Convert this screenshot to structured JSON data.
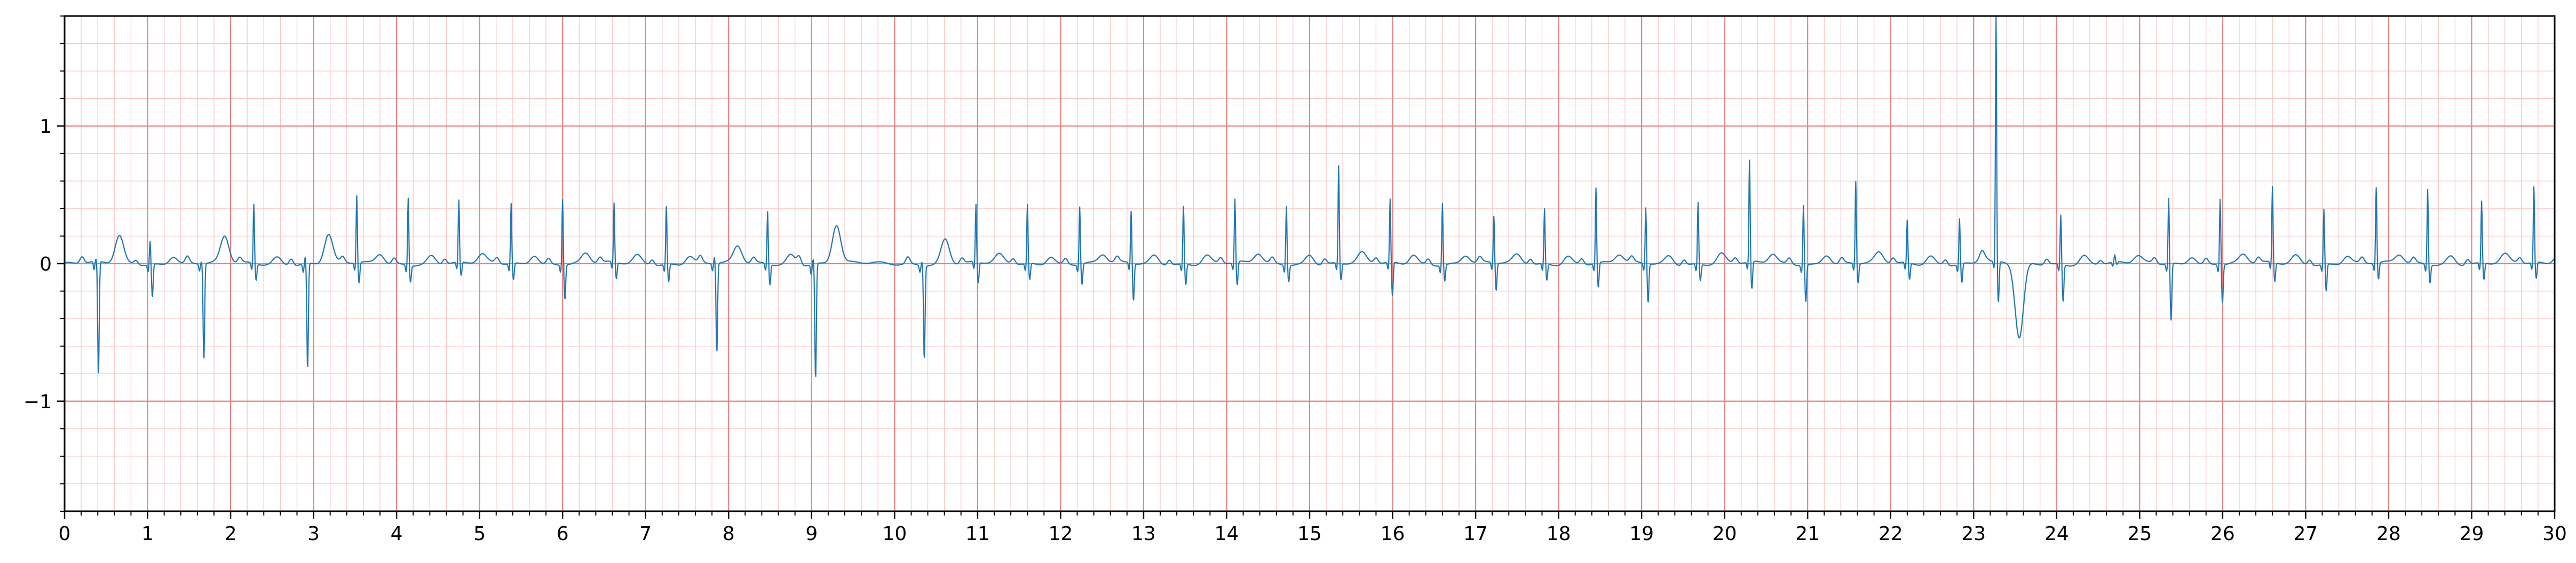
{
  "chart_data": {
    "type": "line",
    "title": "",
    "xlabel": "",
    "ylabel": "",
    "xlim": [
      0,
      30
    ],
    "ylim": [
      -1.8,
      1.8
    ],
    "x_ticks": [
      0,
      1,
      2,
      3,
      4,
      5,
      6,
      7,
      8,
      9,
      10,
      11,
      12,
      13,
      14,
      15,
      16,
      17,
      18,
      19,
      20,
      21,
      22,
      23,
      24,
      25,
      26,
      27,
      28,
      29,
      30
    ],
    "x_tick_labels": [
      "0",
      "1",
      "2",
      "3",
      "4",
      "5",
      "6",
      "7",
      "8",
      "9",
      "10",
      "11",
      "12",
      "13",
      "14",
      "15",
      "16",
      "17",
      "18",
      "19",
      "20",
      "21",
      "22",
      "23",
      "24",
      "25",
      "26",
      "27",
      "28",
      "29",
      "30"
    ],
    "y_ticks": [
      -1,
      0,
      1
    ],
    "y_tick_labels": [
      "−1",
      "0",
      "1"
    ],
    "grid": "on",
    "grid_major_step": {
      "x": 1,
      "y": 1
    },
    "grid_minor_step": {
      "x": 0.2,
      "y": 0.2
    },
    "colors": {
      "line": "#1f77b4",
      "grid_major": "#f08080",
      "grid_minor": "#fbc4c4",
      "axes": "#000000",
      "background": "#ffffff"
    },
    "series": [
      {
        "beats": [
          {
            "t": 0.38,
            "r": 0.02,
            "s": -0.83,
            "q": -0.06,
            "p": 0.05,
            "tw": 0.2
          },
          {
            "t": 1.03,
            "r": 0.17,
            "s": -0.24,
            "q": -0.05,
            "p": 0.03,
            "tw": 0.06
          },
          {
            "t": 1.65,
            "r": 0.02,
            "s": -0.7,
            "q": -0.05,
            "p": 0.05,
            "tw": 0.19
          },
          {
            "t": 2.28,
            "r": 0.43,
            "s": -0.12,
            "q": -0.05,
            "p": 0.04,
            "tw": 0.05
          },
          {
            "t": 2.9,
            "r": 0.05,
            "s": -0.77,
            "q": -0.06,
            "p": 0.05,
            "tw": 0.21
          },
          {
            "t": 3.52,
            "r": 0.49,
            "s": -0.15,
            "q": -0.05,
            "p": 0.04,
            "tw": 0.07
          },
          {
            "t": 4.14,
            "r": 0.49,
            "s": -0.12,
            "q": -0.05,
            "p": 0.04,
            "tw": 0.06
          },
          {
            "t": 4.75,
            "r": 0.45,
            "s": -0.1,
            "q": -0.05,
            "p": 0.04,
            "tw": 0.06
          },
          {
            "t": 5.38,
            "r": 0.44,
            "s": -0.12,
            "q": -0.05,
            "p": 0.04,
            "tw": 0.07
          },
          {
            "t": 6.0,
            "r": 0.48,
            "s": -0.25,
            "q": -0.05,
            "p": 0.04,
            "tw": 0.07
          },
          {
            "t": 6.62,
            "r": 0.43,
            "s": -0.12,
            "q": -0.05,
            "p": 0.04,
            "tw": 0.06
          },
          {
            "t": 7.25,
            "r": 0.42,
            "s": -0.13,
            "q": -0.05,
            "p": 0.04,
            "tw": 0.06
          },
          {
            "t": 7.83,
            "r": 0.05,
            "s": -0.65,
            "q": -0.05,
            "p": 0.05,
            "tw": 0.12
          },
          {
            "t": 8.47,
            "r": 0.38,
            "s": -0.15,
            "q": -0.05,
            "p": 0.04,
            "tw": 0.07
          },
          {
            "t": 9.02,
            "r": 0.04,
            "s": -0.84,
            "q": -0.07,
            "p": 0.06,
            "tw": 0.28
          },
          {
            "t": 10.33,
            "r": 0.03,
            "s": -0.68,
            "q": -0.05,
            "p": 0.05,
            "tw": 0.18
          },
          {
            "t": 10.98,
            "r": 0.42,
            "s": -0.15,
            "q": -0.05,
            "p": 0.04,
            "tw": 0.06
          },
          {
            "t": 11.6,
            "r": 0.43,
            "s": -0.12,
            "q": -0.05,
            "p": 0.04,
            "tw": 0.06
          },
          {
            "t": 12.23,
            "r": 0.42,
            "s": -0.15,
            "q": -0.05,
            "p": 0.04,
            "tw": 0.06
          },
          {
            "t": 12.85,
            "r": 0.38,
            "s": -0.27,
            "q": -0.05,
            "p": 0.04,
            "tw": 0.06
          },
          {
            "t": 13.48,
            "r": 0.42,
            "s": -0.15,
            "q": -0.05,
            "p": 0.04,
            "tw": 0.06
          },
          {
            "t": 14.1,
            "r": 0.46,
            "s": -0.17,
            "q": -0.05,
            "p": 0.04,
            "tw": 0.07
          },
          {
            "t": 14.72,
            "r": 0.43,
            "s": -0.12,
            "q": -0.05,
            "p": 0.04,
            "tw": 0.07
          },
          {
            "t": 15.35,
            "r": 0.71,
            "s": -0.12,
            "q": -0.05,
            "p": 0.04,
            "tw": 0.07
          },
          {
            "t": 15.97,
            "r": 0.46,
            "s": -0.25,
            "q": -0.05,
            "p": 0.04,
            "tw": 0.07
          },
          {
            "t": 16.6,
            "r": 0.45,
            "s": -0.12,
            "q": -0.05,
            "p": 0.04,
            "tw": 0.06
          },
          {
            "t": 17.22,
            "r": 0.34,
            "s": -0.2,
            "q": -0.05,
            "p": 0.04,
            "tw": 0.06
          },
          {
            "t": 17.83,
            "r": 0.4,
            "s": -0.12,
            "q": -0.05,
            "p": 0.04,
            "tw": 0.06
          },
          {
            "t": 18.45,
            "r": 0.55,
            "s": -0.18,
            "q": -0.05,
            "p": 0.04,
            "tw": 0.06
          },
          {
            "t": 19.05,
            "r": 0.41,
            "s": -0.28,
            "q": -0.05,
            "p": 0.04,
            "tw": 0.06
          },
          {
            "t": 19.68,
            "r": 0.45,
            "s": -0.12,
            "q": -0.05,
            "p": 0.04,
            "tw": 0.07
          },
          {
            "t": 20.3,
            "r": 0.74,
            "s": -0.2,
            "q": -0.05,
            "p": 0.04,
            "tw": 0.07
          },
          {
            "t": 20.95,
            "r": 0.44,
            "s": -0.27,
            "q": -0.05,
            "p": 0.04,
            "tw": 0.07
          },
          {
            "t": 21.58,
            "r": 0.6,
            "s": -0.14,
            "q": -0.05,
            "p": 0.04,
            "tw": 0.07
          },
          {
            "t": 22.2,
            "r": 0.31,
            "s": -0.12,
            "q": -0.05,
            "p": 0.04,
            "tw": 0.06
          },
          {
            "t": 22.83,
            "r": 0.33,
            "s": -0.14,
            "q": -0.05,
            "p": 0.04,
            "tw": 0.06
          },
          {
            "t": 23.27,
            "r": 1.8,
            "s": -0.3,
            "q": -0.05,
            "p": 0.04,
            "tw": -0.55
          },
          {
            "t": 24.05,
            "r": 0.36,
            "s": -0.27,
            "q": -0.05,
            "p": 0.04,
            "tw": 0.06
          },
          {
            "t": 24.7,
            "r": 0.05,
            "s": -0.02,
            "q": -0.03,
            "p": 0.03,
            "tw": 0.05
          },
          {
            "t": 25.35,
            "r": 0.48,
            "s": -0.42,
            "q": -0.05,
            "p": 0.04,
            "tw": 0.06
          },
          {
            "t": 25.97,
            "r": 0.48,
            "s": -0.28,
            "q": -0.05,
            "p": 0.04,
            "tw": 0.06
          },
          {
            "t": 26.6,
            "r": 0.55,
            "s": -0.14,
            "q": -0.05,
            "p": 0.04,
            "tw": 0.06
          },
          {
            "t": 27.22,
            "r": 0.4,
            "s": -0.2,
            "q": -0.05,
            "p": 0.04,
            "tw": 0.06
          },
          {
            "t": 27.85,
            "r": 0.55,
            "s": -0.12,
            "q": -0.05,
            "p": 0.04,
            "tw": 0.06
          },
          {
            "t": 28.47,
            "r": 0.55,
            "s": -0.13,
            "q": -0.05,
            "p": 0.04,
            "tw": 0.06
          },
          {
            "t": 29.12,
            "r": 0.45,
            "s": -0.12,
            "q": -0.05,
            "p": 0.04,
            "tw": 0.06
          },
          {
            "t": 29.75,
            "r": 0.55,
            "s": -0.12,
            "q": -0.05,
            "p": 0.04,
            "tw": 0.06
          }
        ]
      }
    ]
  }
}
